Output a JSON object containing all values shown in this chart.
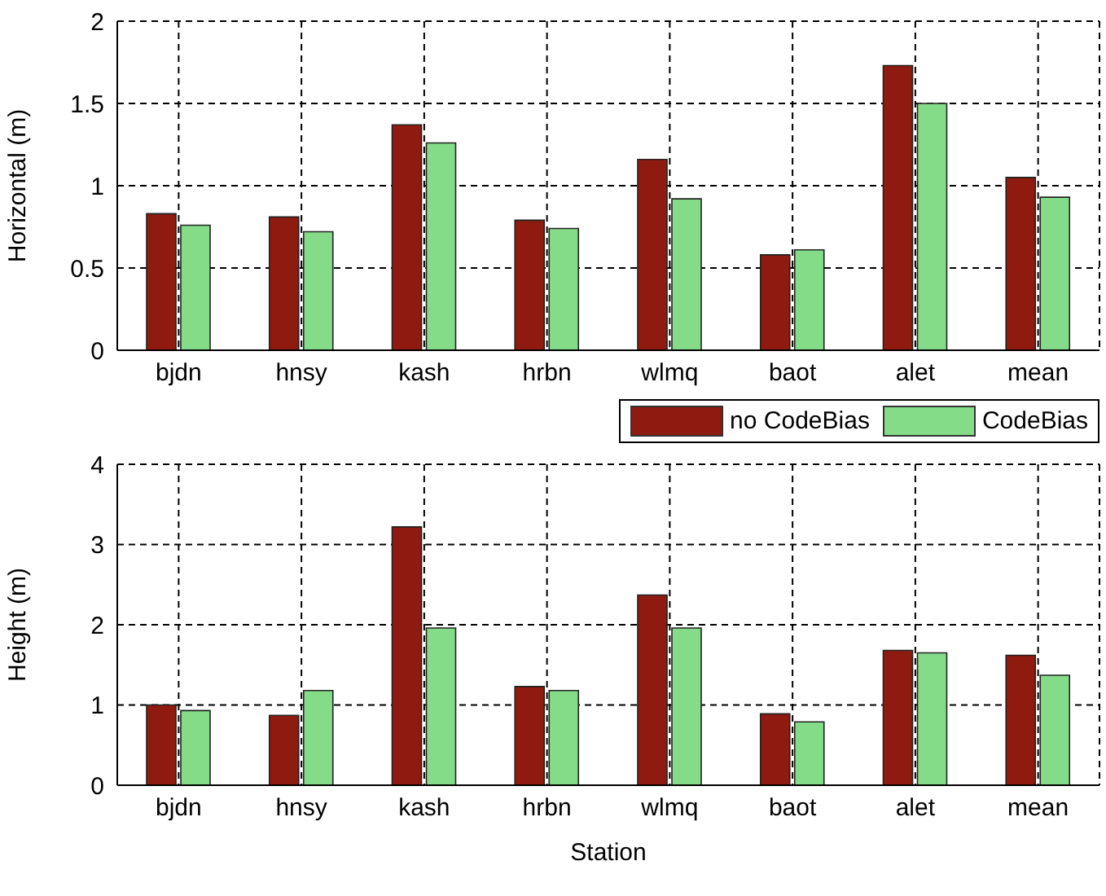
{
  "chart_data": [
    {
      "type": "bar",
      "ylabel": "Horizontal (m)",
      "categories": [
        "bjdn",
        "hnsy",
        "kash",
        "hrbn",
        "wlmq",
        "baot",
        "alet",
        "mean"
      ],
      "series": [
        {
          "color": "#8f1a10",
          "values": [
            0.83,
            0.81,
            1.37,
            0.79,
            1.16,
            0.58,
            1.73,
            1.05
          ]
        },
        {
          "color": "#85dc88",
          "values": [
            0.76,
            0.72,
            1.26,
            0.74,
            0.92,
            0.61,
            1.5,
            0.93
          ]
        }
      ],
      "ylim": [
        0,
        2
      ],
      "yticks": [
        0,
        0.5,
        1,
        1.5,
        2
      ],
      "grid": true,
      "legend": false
    },
    {
      "type": "bar",
      "xlabel": "Station",
      "ylabel": "Height (m)",
      "categories": [
        "bjdn",
        "hnsy",
        "kash",
        "hrbn",
        "wlmq",
        "baot",
        "alet",
        "mean"
      ],
      "series": [
        {
          "name": "no CodeBias",
          "color": "#8f1a10",
          "values": [
            1.0,
            0.87,
            3.22,
            1.23,
            2.37,
            0.89,
            1.68,
            1.62
          ]
        },
        {
          "name": "CodeBias",
          "color": "#85dc88",
          "values": [
            0.93,
            1.18,
            1.96,
            1.18,
            1.96,
            0.79,
            1.65,
            1.37
          ]
        }
      ],
      "ylim": [
        0,
        4
      ],
      "yticks": [
        0,
        1,
        2,
        3,
        4
      ],
      "grid": true,
      "legend": "top right"
    }
  ]
}
